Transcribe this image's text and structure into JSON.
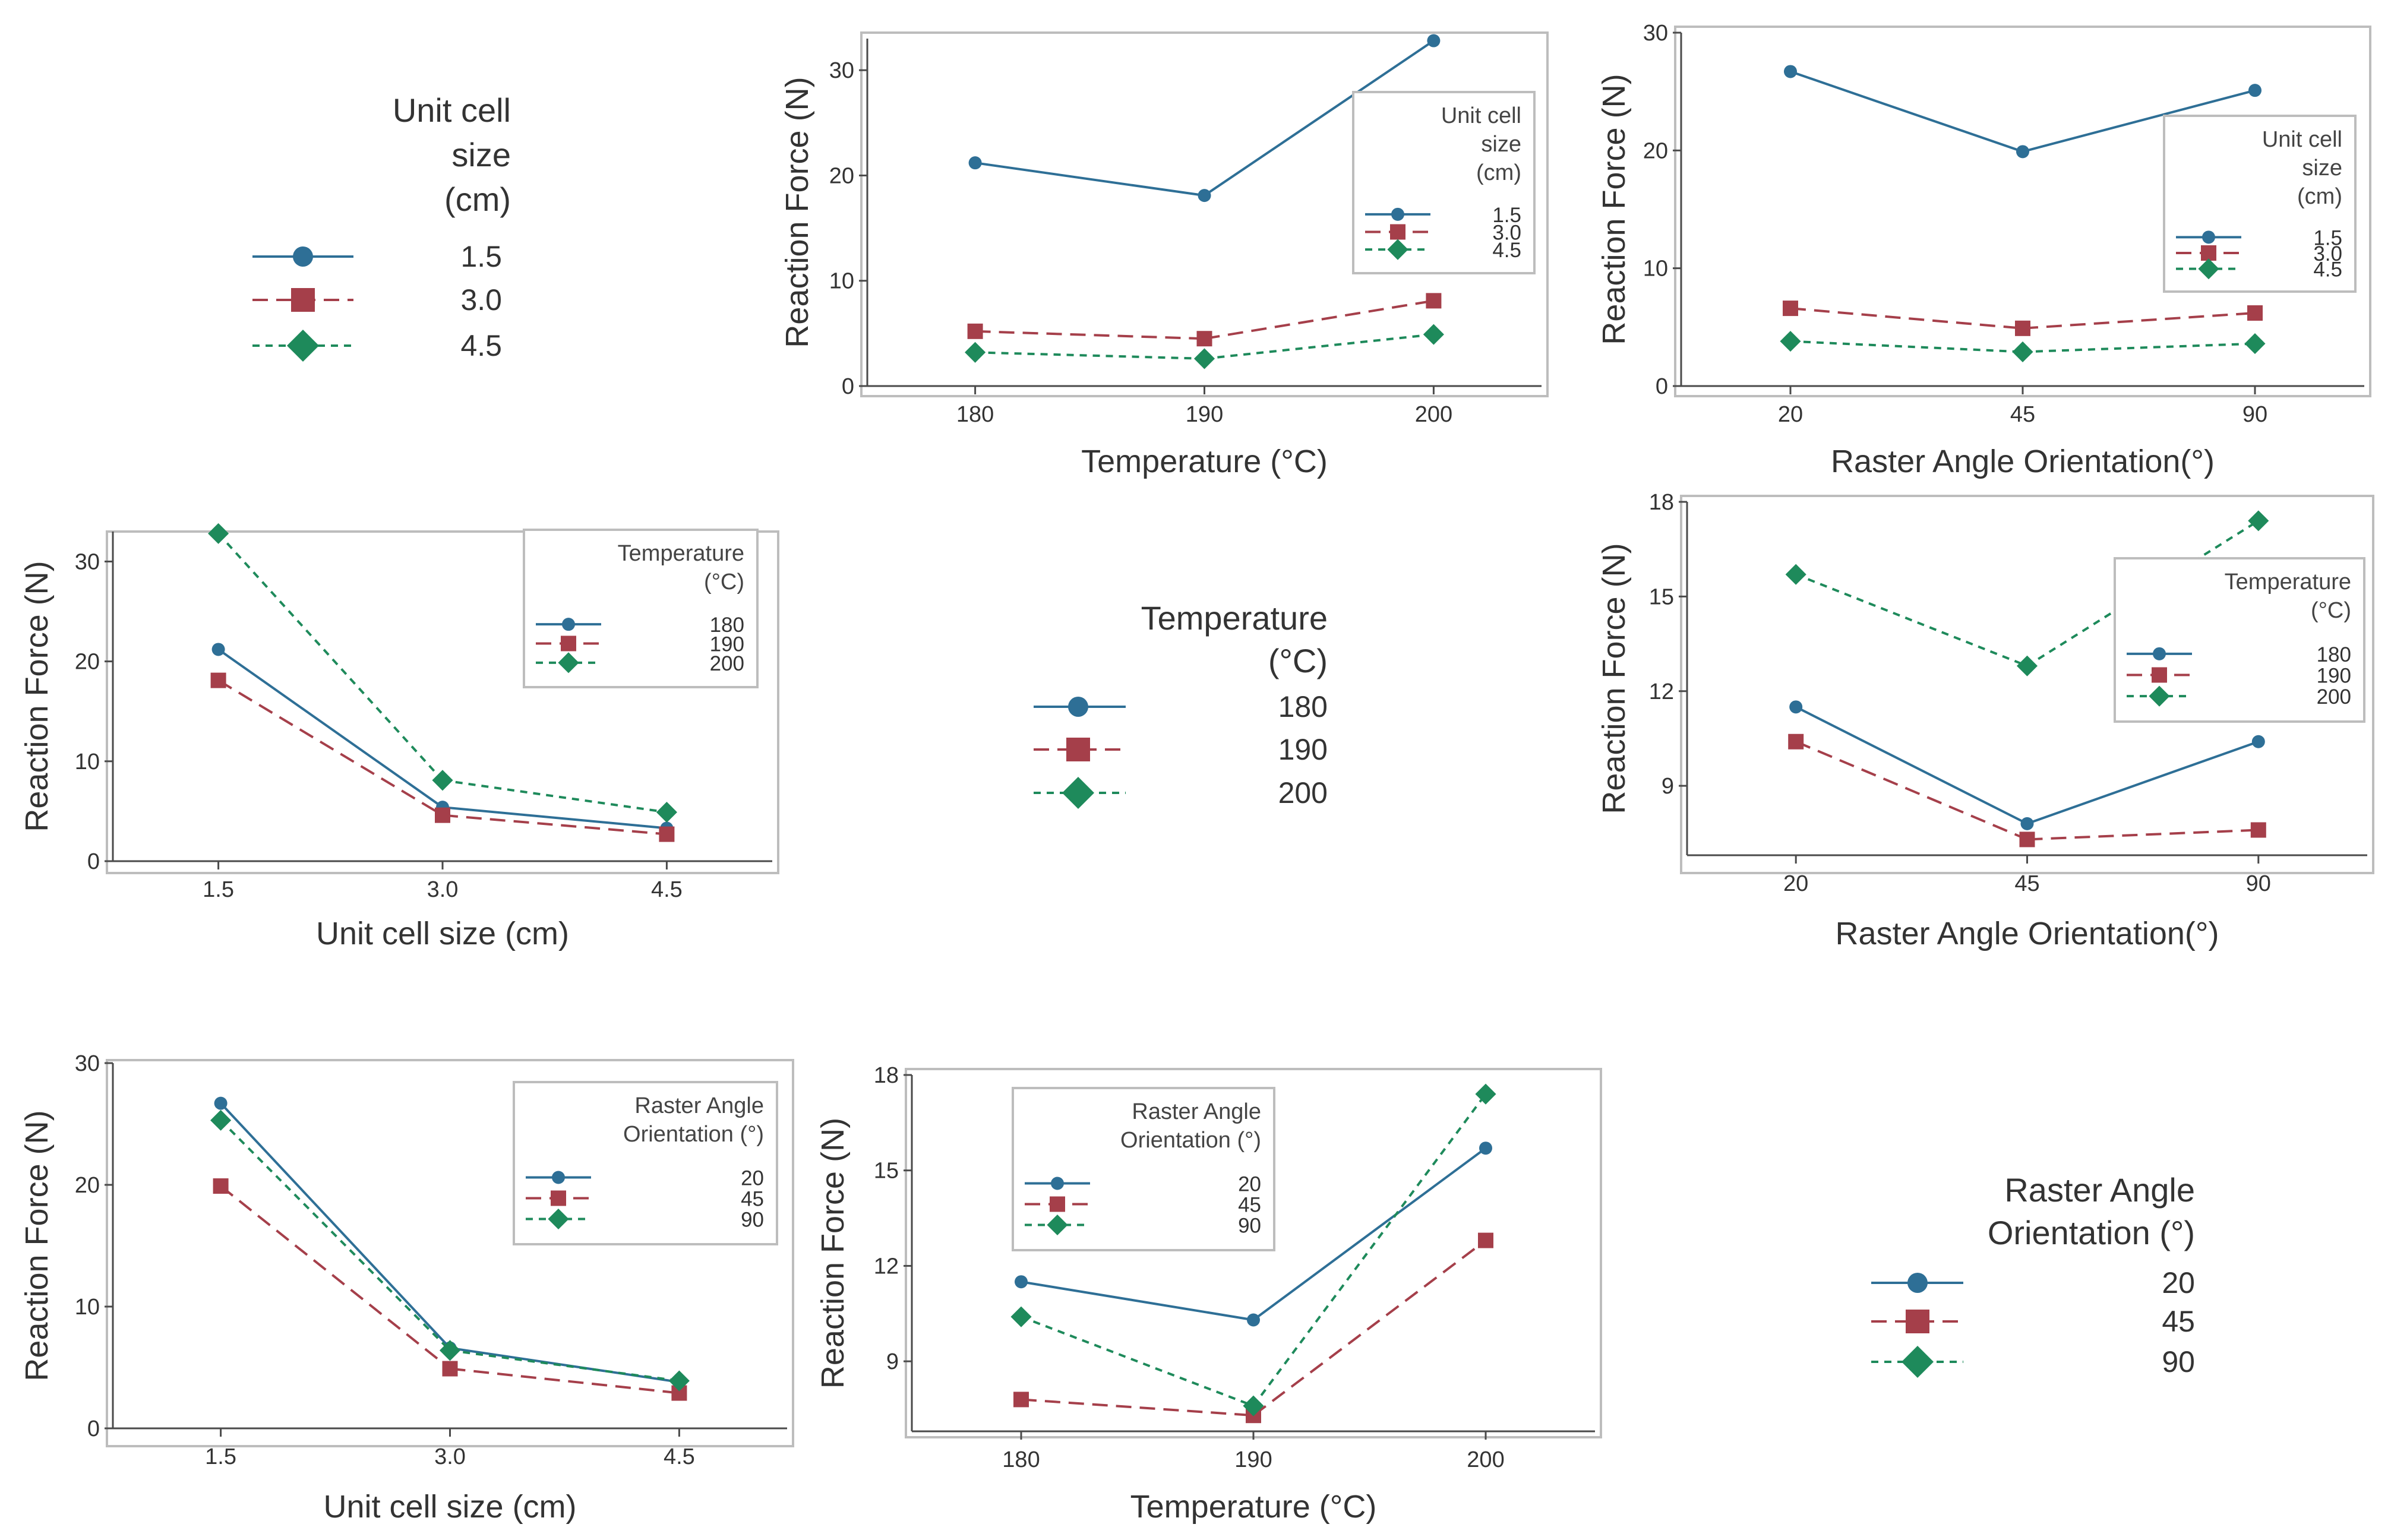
{
  "colors": {
    "s1": "#2e6f96",
    "s2": "#a53f4a",
    "s3": "#1e8a5b"
  },
  "keys": [
    {
      "title_lines": [
        "Unit cell",
        "size",
        "(cm)"
      ],
      "labels": [
        "1.5",
        "3.0",
        "4.5"
      ]
    },
    {
      "title_lines": [
        "Temperature",
        "(°C)"
      ],
      "labels": [
        "180",
        "190",
        "200"
      ]
    },
    {
      "title_lines": [
        "Raster Angle",
        "Orientation (°)"
      ],
      "labels": [
        "20",
        "45",
        "90"
      ]
    }
  ],
  "chart_data": [
    {
      "type": "line",
      "xlabel": "Temperature (°C)",
      "ylabel": "Reaction Force (N)",
      "categories": [
        "180",
        "190",
        "200"
      ],
      "ylim": [
        0,
        33
      ],
      "yticks": [
        0,
        10,
        20,
        30
      ],
      "legend": {
        "title_lines": [
          "Unit cell",
          "size",
          "(cm)"
        ],
        "placement": "top-right"
      },
      "series": [
        {
          "name": "1.5",
          "values": [
            21.2,
            18.1,
            32.8
          ]
        },
        {
          "name": "3.0",
          "values": [
            5.2,
            4.5,
            8.1
          ]
        },
        {
          "name": "4.5",
          "values": [
            3.2,
            2.6,
            4.9
          ]
        }
      ]
    },
    {
      "type": "line",
      "xlabel": "Raster Angle Orientation(°)",
      "ylabel": "Reaction Force (N)",
      "categories": [
        "20",
        "45",
        "90"
      ],
      "ylim": [
        0,
        30
      ],
      "yticks": [
        0,
        10,
        20,
        30
      ],
      "legend": {
        "title_lines": [
          "Unit cell",
          "size",
          "(cm)"
        ],
        "placement": "right"
      },
      "series": [
        {
          "name": "1.5",
          "values": [
            26.7,
            19.9,
            25.1
          ]
        },
        {
          "name": "3.0",
          "values": [
            6.6,
            4.9,
            6.2
          ]
        },
        {
          "name": "4.5",
          "values": [
            3.8,
            2.9,
            3.6
          ]
        }
      ]
    },
    {
      "type": "line",
      "xlabel": "Unit cell size (cm)",
      "ylabel": "Reaction Force (N)",
      "categories": [
        "1.5",
        "3.0",
        "4.5"
      ],
      "ylim": [
        0,
        33
      ],
      "yticks": [
        0,
        10,
        20,
        30
      ],
      "legend": {
        "title_lines": [
          "Temperature",
          "(°C)"
        ],
        "placement": "top-right"
      },
      "series": [
        {
          "name": "180",
          "values": [
            21.2,
            5.4,
            3.3
          ]
        },
        {
          "name": "190",
          "values": [
            18.1,
            4.6,
            2.7
          ]
        },
        {
          "name": "200",
          "values": [
            32.8,
            8.1,
            4.9
          ]
        }
      ]
    },
    {
      "type": "line",
      "xlabel": "Raster Angle Orientation(°)",
      "ylabel": "Reaction Force (N)",
      "categories": [
        "20",
        "45",
        "90"
      ],
      "ylim": [
        6.8,
        18
      ],
      "yticks": [
        9,
        12,
        15,
        18
      ],
      "legend": {
        "title_lines": [
          "Temperature",
          "(°C)"
        ],
        "placement": "right"
      },
      "series": [
        {
          "name": "180",
          "values": [
            11.5,
            7.8,
            10.4
          ]
        },
        {
          "name": "190",
          "values": [
            10.4,
            7.3,
            7.6
          ]
        },
        {
          "name": "200",
          "values": [
            15.7,
            12.8,
            17.4
          ]
        }
      ]
    },
    {
      "type": "line",
      "xlabel": "Unit cell size (cm)",
      "ylabel": "Reaction Force (N)",
      "categories": [
        "1.5",
        "3.0",
        "4.5"
      ],
      "ylim": [
        0,
        30
      ],
      "yticks": [
        0,
        10,
        20,
        30
      ],
      "legend": {
        "title_lines": [
          "Raster Angle",
          "Orientation (°)"
        ],
        "placement": "top-right"
      },
      "series": [
        {
          "name": "20",
          "values": [
            26.7,
            6.6,
            3.8
          ]
        },
        {
          "name": "45",
          "values": [
            19.9,
            4.9,
            2.9
          ]
        },
        {
          "name": "90",
          "values": [
            25.3,
            6.4,
            3.9
          ]
        }
      ]
    },
    {
      "type": "line",
      "xlabel": "Temperature (°C)",
      "ylabel": "Reaction Force (N)",
      "categories": [
        "180",
        "190",
        "200"
      ],
      "ylim": [
        6.8,
        18
      ],
      "yticks": [
        9,
        12,
        15,
        18
      ],
      "legend": {
        "title_lines": [
          "Raster Angle",
          "Orientation (°)"
        ],
        "placement": "top-left"
      },
      "series": [
        {
          "name": "20",
          "values": [
            11.5,
            10.3,
            15.7
          ]
        },
        {
          "name": "45",
          "values": [
            7.8,
            7.3,
            12.8
          ]
        },
        {
          "name": "90",
          "values": [
            10.4,
            7.6,
            17.4
          ]
        }
      ]
    }
  ]
}
